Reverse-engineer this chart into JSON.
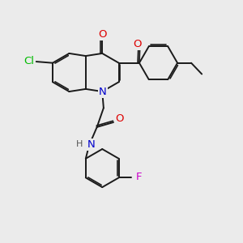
{
  "background_color": "#ebebeb",
  "bond_color": "#1a1a1a",
  "bond_width": 1.4,
  "atom_colors": {
    "O": "#dd0000",
    "N": "#0000cc",
    "Cl": "#00bb00",
    "F": "#cc00cc",
    "H": "#555555",
    "C": "#1a1a1a"
  }
}
